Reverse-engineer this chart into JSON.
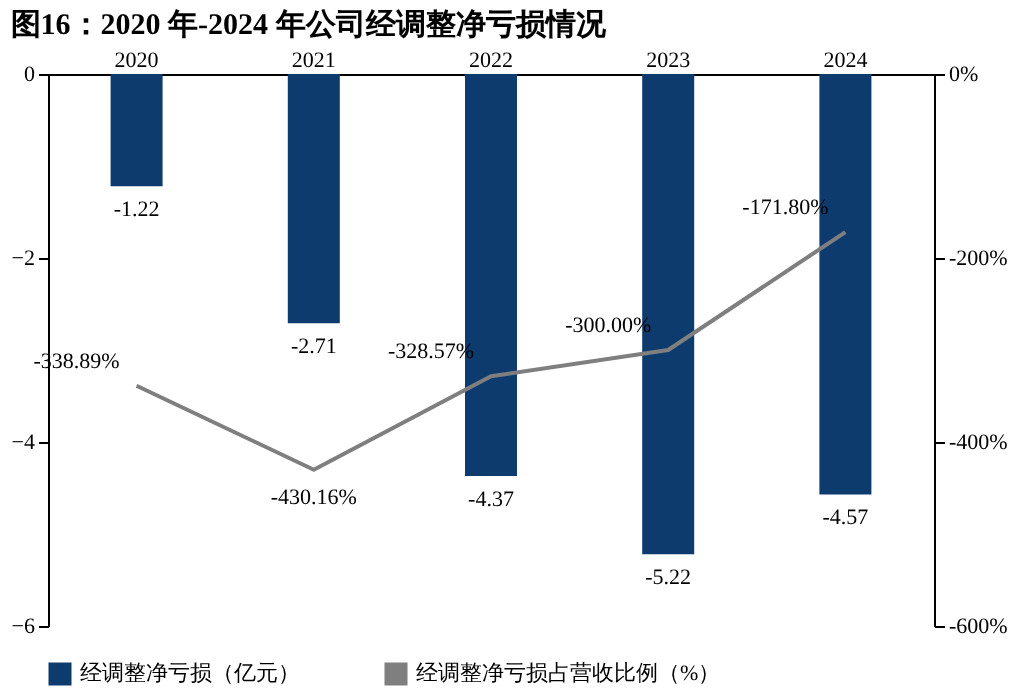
{
  "chart_data": {
    "type": "bar",
    "title": "图16：2020 年-2024 年公司经调整净亏损情况",
    "categories": [
      "2020",
      "2021",
      "2022",
      "2023",
      "2024"
    ],
    "series": [
      {
        "name": "经调整净亏损（亿元）",
        "color": "#0d3b6e",
        "values": [
          -1.22,
          -2.71,
          -4.37,
          -5.22,
          -4.57
        ]
      },
      {
        "name": "经调整净亏损占营收比例（%）",
        "type": "line",
        "axis": "y2",
        "color": "#7f7f7f",
        "values": [
          -338.89,
          -430.16,
          -328.57,
          -300.0,
          -171.8
        ],
        "value_labels": [
          "-338.89%",
          "-430.16%",
          "-328.57%",
          "-300.00%",
          "-171.80%"
        ]
      }
    ],
    "ylim": [
      -6,
      0
    ],
    "yticks": [
      -6,
      -4,
      -2,
      0
    ],
    "y2lim": [
      -600,
      0
    ],
    "y2ticks": [
      {
        "value": -600,
        "label": "-600%"
      },
      {
        "value": -400,
        "label": "-400%"
      },
      {
        "value": -200,
        "label": "-200%"
      },
      {
        "value": 0,
        "label": "0%"
      }
    ],
    "data_labels": true,
    "grid": false,
    "legend": "bottom"
  }
}
